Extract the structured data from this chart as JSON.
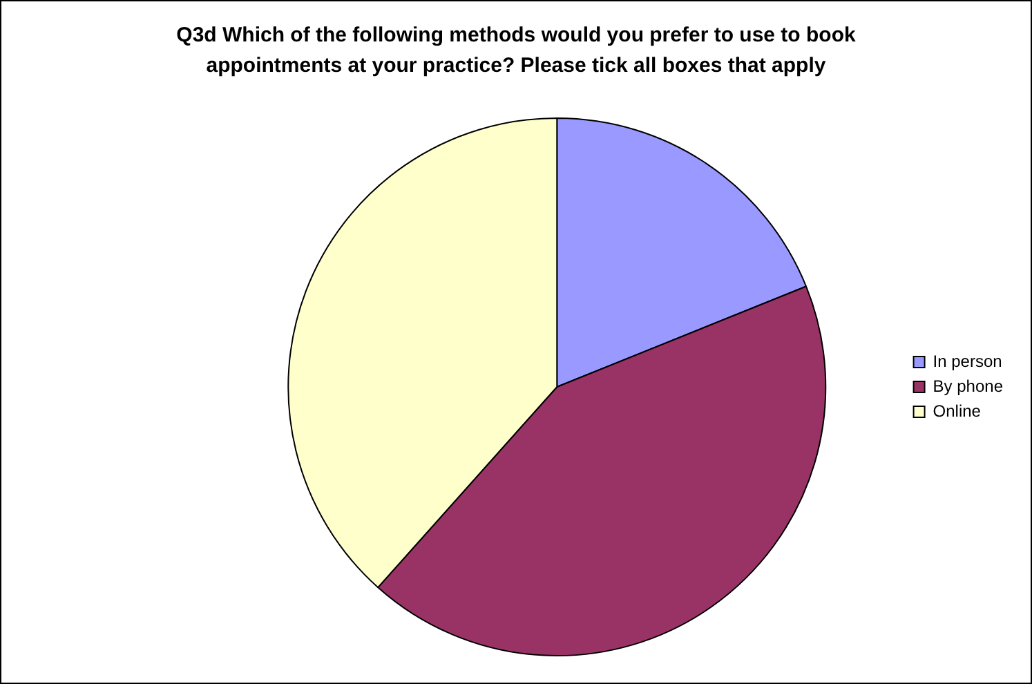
{
  "chart_data": {
    "type": "pie",
    "title": "Q3d Which of the following methods would you prefer to use to book appointments at your practice? Please tick all boxes that apply",
    "categories": [
      "In person",
      "By phone",
      "Online"
    ],
    "values": [
      18.9,
      42.7,
      38.4
    ],
    "colors": [
      "#9999ff",
      "#993366",
      "#ffffcc"
    ],
    "legend": "right"
  }
}
